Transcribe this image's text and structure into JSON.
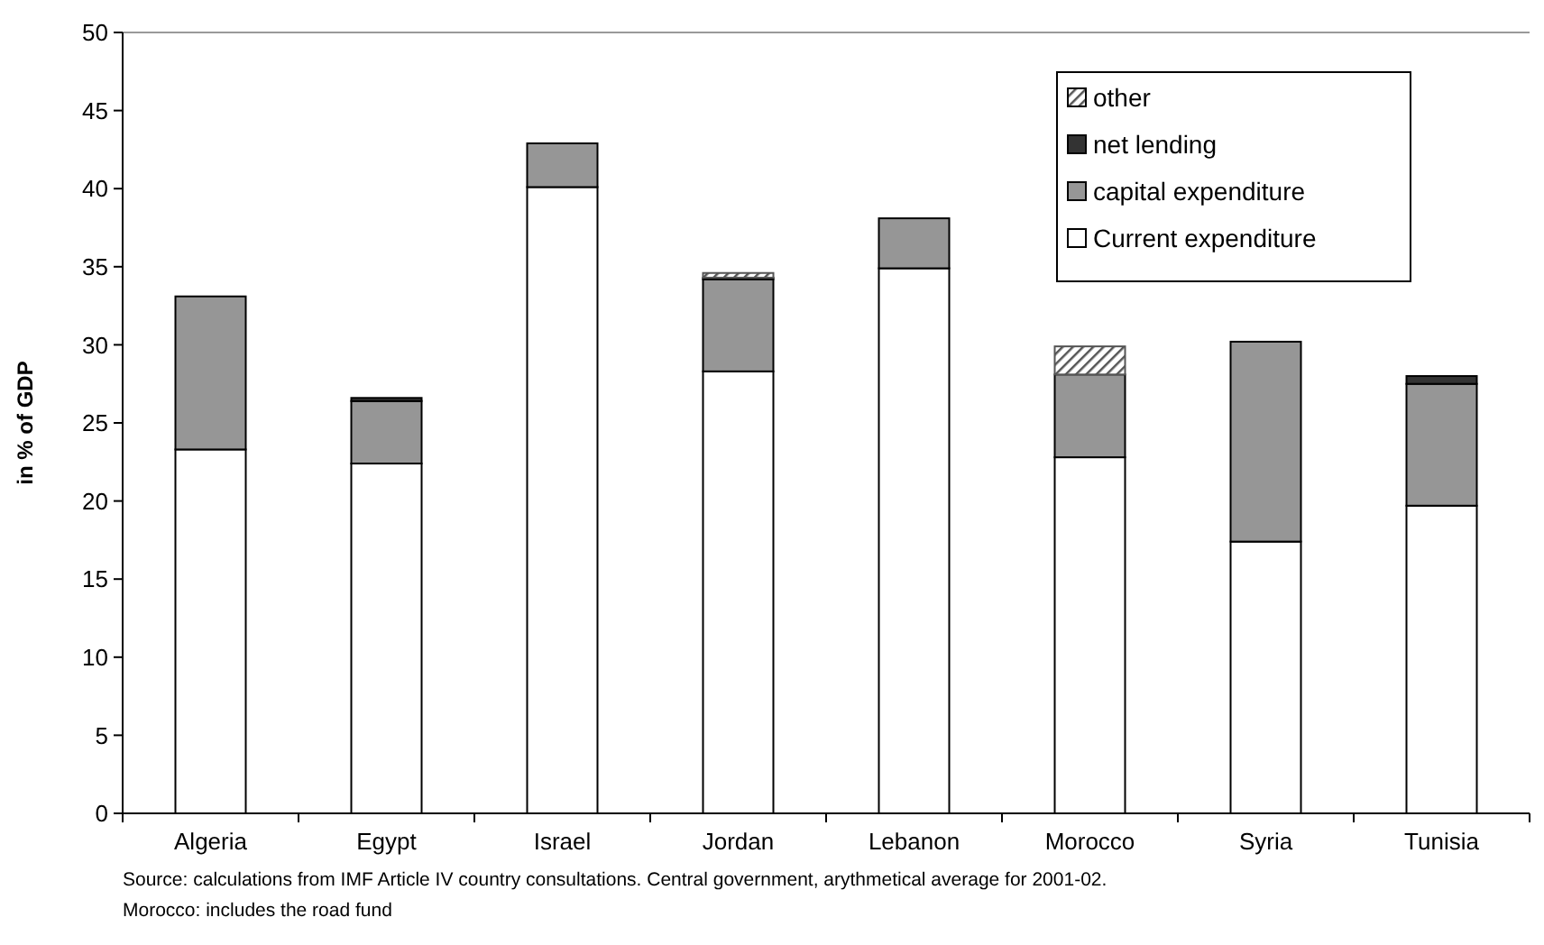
{
  "chart_data": {
    "type": "bar",
    "stacked": true,
    "ylabel": "in % of GDP",
    "categories": [
      "Algeria",
      "Egypt",
      "Israel",
      "Jordan",
      "Lebanon",
      "Morocco",
      "Syria",
      "Tunisia"
    ],
    "series": [
      {
        "name": "Current expenditure",
        "color": "#ffffff",
        "values": [
          23.3,
          22.4,
          40.1,
          28.3,
          34.9,
          22.8,
          17.4,
          19.7
        ]
      },
      {
        "name": "capital expenditure",
        "color": "#969696",
        "values": [
          9.8,
          4.0,
          2.8,
          5.9,
          3.2,
          5.3,
          12.8,
          7.8
        ]
      },
      {
        "name": "net lending",
        "color": "#333333",
        "values": [
          null,
          0.2,
          null,
          0.1,
          null,
          null,
          null,
          0.5
        ]
      },
      {
        "name": "other",
        "color": "#555555",
        "values": [
          null,
          null,
          null,
          0.3,
          null,
          1.8,
          null,
          null
        ]
      }
    ],
    "ylim": [
      0,
      50
    ],
    "yticks": [
      0,
      5,
      10,
      15,
      20,
      25,
      30,
      35,
      40,
      45,
      50
    ],
    "grid": false,
    "legend": "top right",
    "annotations": [
      "Source:  calculations from IMF Article IV country consultations. Central government, arythmetical average for 2001-02.",
      "Morocco: includes the road fund"
    ]
  }
}
